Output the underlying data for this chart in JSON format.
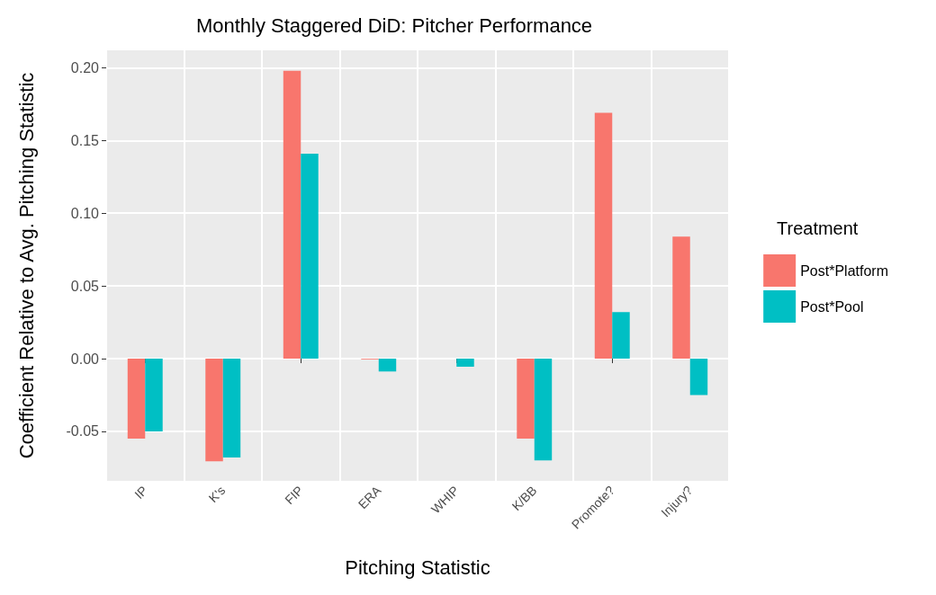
{
  "chart_data": {
    "type": "bar",
    "title": "Monthly Staggered DiD: Pitcher Performance",
    "xlabel": "Pitching Statistic",
    "ylabel": "Coefficient Relative to Avg. Pitching Statistic",
    "legend_title": "Treatment",
    "categories": [
      "IP",
      "K's",
      "FIP",
      "ERA",
      "WHIP",
      "K/BB",
      "Promote?",
      "Injury?"
    ],
    "series": [
      {
        "name": "Post*Platform",
        "color": "#f8766d",
        "values": [
          -0.055,
          -0.0705,
          0.198,
          -0.0005,
          0,
          -0.055,
          0.169,
          0.084
        ]
      },
      {
        "name": "Post*Pool",
        "color": "#00bfc4",
        "values": [
          -0.05,
          -0.068,
          0.141,
          -0.0088,
          -0.0055,
          -0.07,
          0.032,
          -0.025
        ]
      }
    ],
    "ylim": [
      -0.084,
      0.212
    ],
    "yticks": [
      -0.05,
      {
        "value": 0,
        "label": "0.00"
      },
      0.05,
      {
        "value": 0.1,
        "label": "0.10"
      },
      0.15,
      {
        "value": 0.2,
        "label": "0.20"
      }
    ],
    "grid": true,
    "legend": "right"
  }
}
